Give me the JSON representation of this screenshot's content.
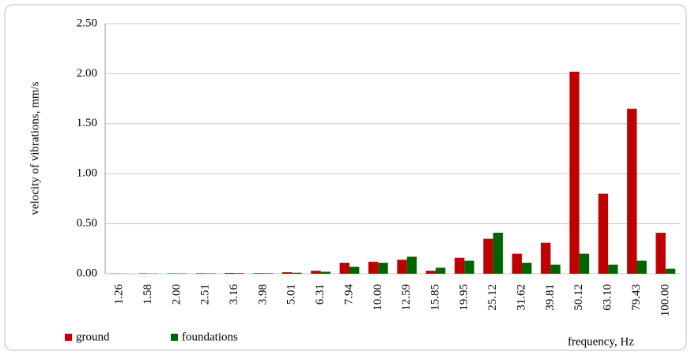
{
  "chart_data": {
    "type": "bar",
    "y_label": "velocity of vibrations, mm/s",
    "x_label": "frequency,  Hz",
    "categories": [
      "1.26",
      "1.58",
      "2.00",
      "2.51",
      "3.16",
      "3.98",
      "5.01",
      "6.31",
      "7.94",
      "10.00",
      "12.59",
      "15.85",
      "19.95",
      "25.12",
      "31.62",
      "39.81",
      "50.12",
      "63.10",
      "79.43",
      "100.00"
    ],
    "series": [
      {
        "name": "ground",
        "color": "#c00000",
        "values": [
          0.002,
          0.004,
          0.004,
          0.005,
          0.008,
          0.006,
          0.015,
          0.03,
          0.11,
          0.12,
          0.14,
          0.03,
          0.16,
          0.35,
          0.2,
          0.31,
          2.02,
          0.8,
          1.65,
          0.41
        ]
      },
      {
        "name": "foundations",
        "color": "#006400",
        "values": [
          0.001,
          0.002,
          0.003,
          0.004,
          0.006,
          0.005,
          0.01,
          0.02,
          0.07,
          0.11,
          0.17,
          0.06,
          0.13,
          0.41,
          0.11,
          0.09,
          0.2,
          0.09,
          0.13,
          0.05
        ]
      }
    ],
    "ylim": [
      0,
      2.5
    ],
    "yticks": [
      {
        "value": 0,
        "label": "0.00"
      },
      {
        "value": 0.5,
        "label": "0.50"
      },
      {
        "value": 1,
        "label": "1.00"
      },
      {
        "value": 1.5,
        "label": "1.50"
      },
      {
        "value": 2,
        "label": "2.00"
      },
      {
        "value": 2.5,
        "label": "2.50"
      }
    ],
    "grid": true,
    "legend": "bottom-left"
  }
}
